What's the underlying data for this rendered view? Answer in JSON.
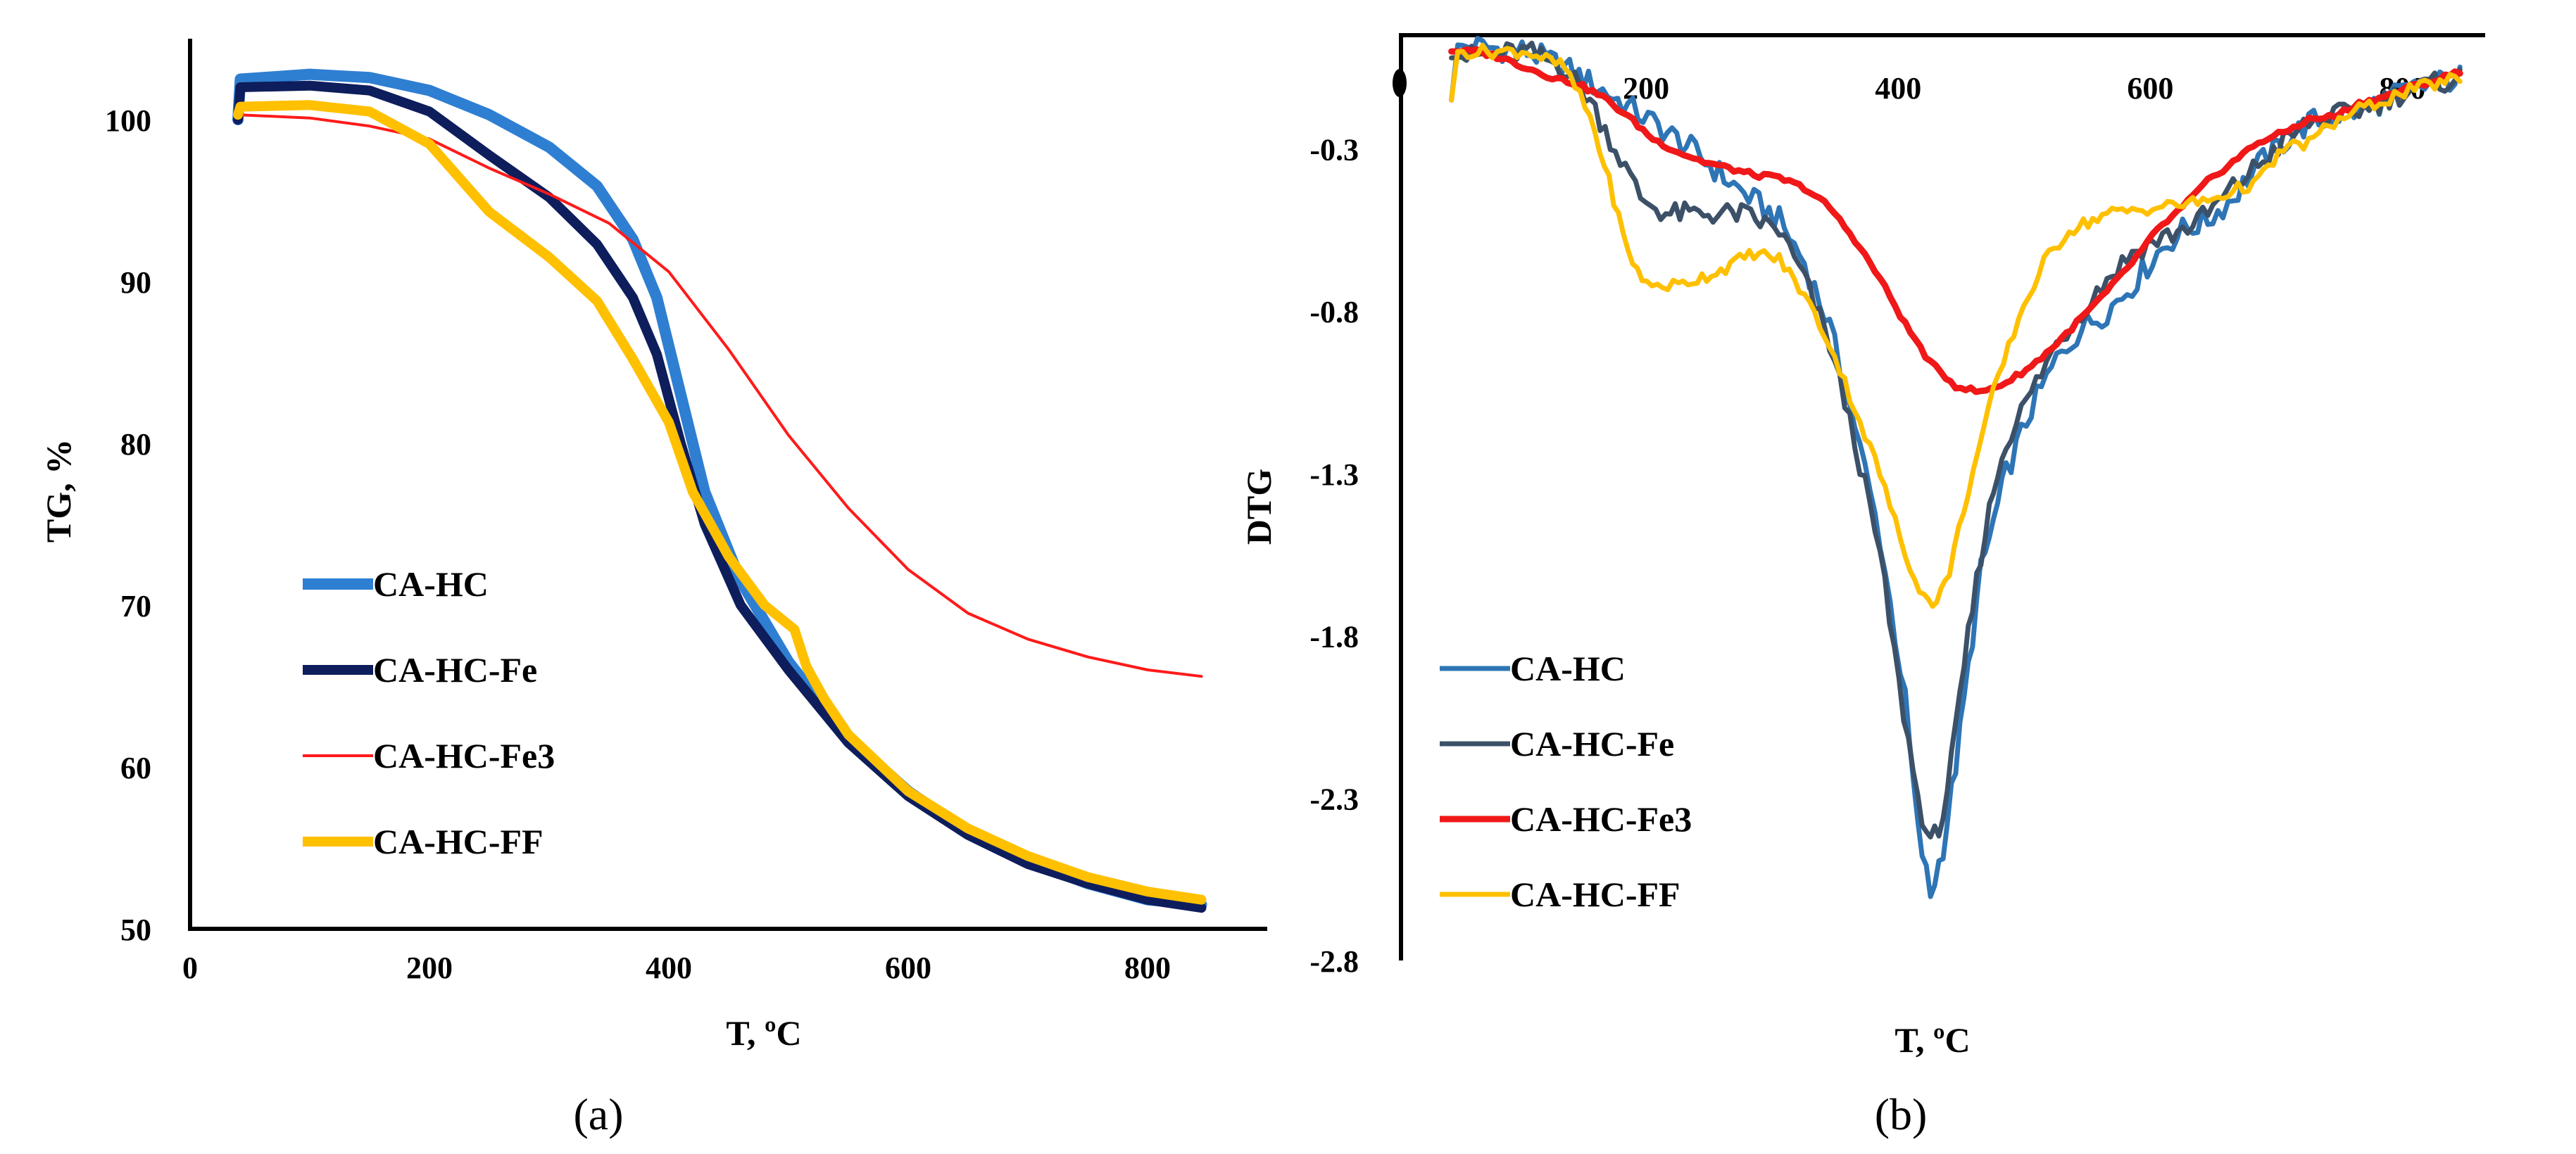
{
  "chart_data": [
    {
      "type": "line",
      "panel_label": "(a)",
      "xlabel": "T, ºC",
      "ylabel": "TG, %",
      "xlim": [
        0,
        900
      ],
      "ylim": [
        50,
        105
      ],
      "x_ticks": [
        "0",
        "200",
        "400",
        "600",
        "800"
      ],
      "y_ticks": [
        "50",
        "60",
        "70",
        "80",
        "90",
        "100"
      ],
      "legend_position": "left-center",
      "series": [
        {
          "name": "CA-HC",
          "color": "#2E7FD2",
          "width": 16,
          "points": [
            [
              40,
              100
            ],
            [
              42,
              102.5
            ],
            [
              100,
              102.8
            ],
            [
              150,
              102.6
            ],
            [
              200,
              101.8
            ],
            [
              250,
              100.3
            ],
            [
              300,
              98.3
            ],
            [
              340,
              95.9
            ],
            [
              370,
              92.6
            ],
            [
              390,
              89
            ],
            [
              410,
              83
            ],
            [
              430,
              77
            ],
            [
              460,
              71.5
            ],
            [
              500,
              66.5
            ],
            [
              550,
              61.8
            ],
            [
              600,
              58.5
            ],
            [
              650,
              56
            ],
            [
              700,
              54.2
            ],
            [
              750,
              52.8
            ],
            [
              800,
              51.8
            ],
            [
              845,
              51.5
            ]
          ]
        },
        {
          "name": "CA-HC-Fe",
          "color": "#0E1D5C",
          "width": 14,
          "points": [
            [
              40,
              100
            ],
            [
              42,
              102
            ],
            [
              100,
              102.1
            ],
            [
              150,
              101.8
            ],
            [
              200,
              100.5
            ],
            [
              250,
              97.8
            ],
            [
              300,
              95.2
            ],
            [
              340,
              92.3
            ],
            [
              370,
              89
            ],
            [
              390,
              85.5
            ],
            [
              410,
              80
            ],
            [
              430,
              75
            ],
            [
              460,
              70
            ],
            [
              500,
              66
            ],
            [
              550,
              61.5
            ],
            [
              600,
              58.2
            ],
            [
              650,
              55.8
            ],
            [
              700,
              54
            ],
            [
              750,
              52.8
            ],
            [
              800,
              51.8
            ],
            [
              845,
              51.3
            ]
          ]
        },
        {
          "name": "CA-HC-Fe3",
          "color": "#FF1A1A",
          "width": 4,
          "points": [
            [
              40,
              100.3
            ],
            [
              100,
              100.1
            ],
            [
              150,
              99.6
            ],
            [
              200,
              98.8
            ],
            [
              250,
              97
            ],
            [
              300,
              95.4
            ],
            [
              350,
              93.6
            ],
            [
              400,
              90.6
            ],
            [
              450,
              85.8
            ],
            [
              500,
              80.5
            ],
            [
              550,
              76
            ],
            [
              600,
              72.2
            ],
            [
              650,
              69.5
            ],
            [
              700,
              67.9
            ],
            [
              750,
              66.8
            ],
            [
              800,
              66
            ],
            [
              845,
              65.6
            ]
          ]
        },
        {
          "name": "CA-HC-FF",
          "color": "#FFC000",
          "width": 14,
          "points": [
            [
              40,
              100.3
            ],
            [
              42,
              100.8
            ],
            [
              100,
              100.9
            ],
            [
              150,
              100.5
            ],
            [
              200,
              98.5
            ],
            [
              250,
              94.3
            ],
            [
              300,
              91.5
            ],
            [
              340,
              88.8
            ],
            [
              370,
              85.2
            ],
            [
              400,
              81.3
            ],
            [
              420,
              77
            ],
            [
              450,
              73
            ],
            [
              480,
              70
            ],
            [
              505,
              68.5
            ],
            [
              515,
              66.2
            ],
            [
              530,
              64.2
            ],
            [
              550,
              62
            ],
            [
              600,
              58.5
            ],
            [
              650,
              56.2
            ],
            [
              700,
              54.5
            ],
            [
              750,
              53.2
            ],
            [
              800,
              52.3
            ],
            [
              845,
              51.8
            ]
          ]
        }
      ]
    },
    {
      "type": "line",
      "panel_label": "(b)",
      "xlabel": "T, ºC",
      "ylabel": "DTG",
      "xlim": [
        0,
        860
      ],
      "ylim": [
        -2.8,
        0.05
      ],
      "x_ticks": [
        "200",
        "400",
        "600",
        "800"
      ],
      "y_ticks": [
        "-0.3",
        "-0.8",
        "-1.3",
        "-1.8",
        "-2.3",
        "-2.8"
      ],
      "legend_position": "bottom-left",
      "series": [
        {
          "name": "CA-HC",
          "color": "#2E75B6",
          "width": 7,
          "points": [
            [
              40,
              -0.15
            ],
            [
              45,
              0.02
            ],
            [
              100,
              0
            ],
            [
              130,
              -0.05
            ],
            [
              160,
              -0.12
            ],
            [
              200,
              -0.22
            ],
            [
              230,
              -0.3
            ],
            [
              260,
              -0.4
            ],
            [
              300,
              -0.52
            ],
            [
              320,
              -0.65
            ],
            [
              340,
              -0.85
            ],
            [
              360,
              -1.15
            ],
            [
              380,
              -1.5
            ],
            [
              400,
              -2
            ],
            [
              410,
              -2.4
            ],
            [
              420,
              -2.6
            ],
            [
              430,
              -2.45
            ],
            [
              440,
              -2.2
            ],
            [
              450,
              -1.9
            ],
            [
              460,
              -1.6
            ],
            [
              470,
              -1.45
            ],
            [
              480,
              -1.3
            ],
            [
              500,
              -1.1
            ],
            [
              520,
              -0.95
            ],
            [
              540,
              -0.85
            ],
            [
              560,
              -0.8
            ],
            [
              580,
              -0.72
            ],
            [
              600,
              -0.62
            ],
            [
              620,
              -0.55
            ],
            [
              640,
              -0.52
            ],
            [
              660,
              -0.45
            ],
            [
              680,
              -0.35
            ],
            [
              700,
              -0.28
            ],
            [
              720,
              -0.22
            ],
            [
              740,
              -0.2
            ],
            [
              760,
              -0.18
            ],
            [
              780,
              -0.15
            ],
            [
              800,
              -0.12
            ],
            [
              820,
              -0.1
            ],
            [
              840,
              -0.08
            ]
          ],
          "noise": 0.04
        },
        {
          "name": "CA-HC-Fe",
          "color": "#3C5168",
          "width": 7,
          "points": [
            [
              40,
              -0.02
            ],
            [
              100,
              0
            ],
            [
              130,
              -0.05
            ],
            [
              150,
              -0.15
            ],
            [
              170,
              -0.3
            ],
            [
              190,
              -0.45
            ],
            [
              210,
              -0.5
            ],
            [
              240,
              -0.5
            ],
            [
              270,
              -0.5
            ],
            [
              300,
              -0.55
            ],
            [
              320,
              -0.7
            ],
            [
              340,
              -0.9
            ],
            [
              360,
              -1.2
            ],
            [
              380,
              -1.55
            ],
            [
              395,
              -1.95
            ],
            [
              410,
              -2.3
            ],
            [
              420,
              -2.45
            ],
            [
              430,
              -2.35
            ],
            [
              440,
              -2.1
            ],
            [
              450,
              -1.8
            ],
            [
              460,
              -1.55
            ],
            [
              470,
              -1.35
            ],
            [
              480,
              -1.2
            ],
            [
              500,
              -1.05
            ],
            [
              520,
              -0.9
            ],
            [
              540,
              -0.8
            ],
            [
              560,
              -0.7
            ],
            [
              580,
              -0.62
            ],
            [
              600,
              -0.58
            ],
            [
              620,
              -0.55
            ],
            [
              640,
              -0.5
            ],
            [
              660,
              -0.42
            ],
            [
              680,
              -0.35
            ],
            [
              700,
              -0.28
            ],
            [
              720,
              -0.22
            ],
            [
              740,
              -0.2
            ],
            [
              760,
              -0.18
            ],
            [
              780,
              -0.15
            ],
            [
              800,
              -0.12
            ],
            [
              820,
              -0.1
            ],
            [
              840,
              -0.08
            ]
          ],
          "noise": 0.035
        },
        {
          "name": "CA-HC-Fe3",
          "color": "#F01818",
          "width": 9,
          "points": [
            [
              40,
              0
            ],
            [
              60,
              0
            ],
            [
              80,
              -0.02
            ],
            [
              100,
              -0.05
            ],
            [
              120,
              -0.08
            ],
            [
              140,
              -0.1
            ],
            [
              160,
              -0.14
            ],
            [
              180,
              -0.2
            ],
            [
              200,
              -0.27
            ],
            [
              220,
              -0.31
            ],
            [
              240,
              -0.34
            ],
            [
              260,
              -0.36
            ],
            [
              280,
              -0.38
            ],
            [
              300,
              -0.39
            ],
            [
              320,
              -0.42
            ],
            [
              340,
              -0.48
            ],
            [
              360,
              -0.58
            ],
            [
              380,
              -0.7
            ],
            [
              400,
              -0.84
            ],
            [
              420,
              -0.96
            ],
            [
              440,
              -1.03
            ],
            [
              460,
              -1.05
            ],
            [
              480,
              -1.02
            ],
            [
              500,
              -0.97
            ],
            [
              520,
              -0.9
            ],
            [
              540,
              -0.82
            ],
            [
              560,
              -0.74
            ],
            [
              580,
              -0.65
            ],
            [
              600,
              -0.55
            ],
            [
              620,
              -0.48
            ],
            [
              640,
              -0.4
            ],
            [
              660,
              -0.34
            ],
            [
              680,
              -0.28
            ],
            [
              700,
              -0.25
            ],
            [
              720,
              -0.21
            ],
            [
              740,
              -0.2
            ],
            [
              760,
              -0.16
            ],
            [
              780,
              -0.14
            ],
            [
              800,
              -0.11
            ],
            [
              820,
              -0.09
            ],
            [
              840,
              -0.06
            ]
          ],
          "noise": 0.008
        },
        {
          "name": "CA-HC-FF",
          "color": "#FFC000",
          "width": 7,
          "points": [
            [
              40,
              -0.15
            ],
            [
              45,
              0
            ],
            [
              100,
              0
            ],
            [
              130,
              -0.05
            ],
            [
              150,
              -0.2
            ],
            [
              165,
              -0.4
            ],
            [
              180,
              -0.62
            ],
            [
              195,
              -0.72
            ],
            [
              220,
              -0.72
            ],
            [
              250,
              -0.68
            ],
            [
              280,
              -0.62
            ],
            [
              300,
              -0.64
            ],
            [
              320,
              -0.75
            ],
            [
              340,
              -0.9
            ],
            [
              360,
              -1.1
            ],
            [
              380,
              -1.3
            ],
            [
              400,
              -1.55
            ],
            [
              415,
              -1.68
            ],
            [
              425,
              -1.7
            ],
            [
              435,
              -1.6
            ],
            [
              450,
              -1.35
            ],
            [
              470,
              -1.05
            ],
            [
              490,
              -0.82
            ],
            [
              510,
              -0.65
            ],
            [
              530,
              -0.55
            ],
            [
              560,
              -0.5
            ],
            [
              600,
              -0.48
            ],
            [
              640,
              -0.46
            ],
            [
              680,
              -0.4
            ],
            [
              700,
              -0.3
            ],
            [
              720,
              -0.28
            ],
            [
              740,
              -0.22
            ],
            [
              760,
              -0.18
            ],
            [
              780,
              -0.15
            ],
            [
              800,
              -0.12
            ],
            [
              820,
              -0.1
            ],
            [
              840,
              -0.08
            ]
          ],
          "noise": 0.02
        }
      ]
    }
  ]
}
